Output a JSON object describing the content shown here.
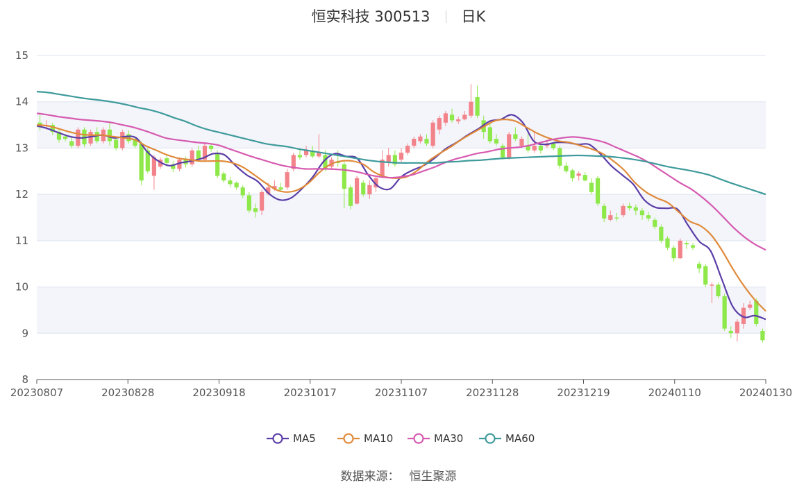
{
  "title": {
    "name": "恒实科技 300513",
    "period": "日K"
  },
  "source": {
    "label": "数据来源：",
    "value": "恒生聚源"
  },
  "colors": {
    "up": "#f3838b",
    "down": "#8ee84a",
    "MA5": "#5b3ea8",
    "MA10": "#e08a3a",
    "MA30": "#d65ab0",
    "MA60": "#3e9a9b",
    "band": "#f3f5fa",
    "grid": "#dde3ef"
  },
  "chart_data": {
    "type": "candlestick",
    "ylim": [
      8,
      15
    ],
    "yticks": [
      "8",
      "9",
      "10",
      "11",
      "12",
      "13",
      "14",
      "15"
    ],
    "xtick_labels": [
      "20230807",
      "20230828",
      "20230918",
      "20231017",
      "20231107",
      "20231128",
      "20231219",
      "20240110",
      "20240130"
    ],
    "grid": true,
    "legend_position": "bottom",
    "legend": [
      "MA5",
      "MA10",
      "MA30",
      "MA60"
    ],
    "ma_series": [
      {
        "name": "MA5",
        "values": [
          13.48,
          13.42,
          13.33,
          13.25,
          13.22,
          13.25,
          13.28,
          13.22,
          13.25,
          13.22,
          12.92,
          12.72,
          12.62,
          12.68,
          12.72,
          12.78,
          12.88,
          12.85,
          12.62,
          12.42,
          12.28,
          12.02,
          11.88,
          11.92,
          12.12,
          12.38,
          12.72,
          12.88,
          12.82,
          12.78,
          12.42,
          12.16,
          12.12,
          12.38,
          12.52,
          12.62,
          12.78,
          12.98,
          13.12,
          13.28,
          13.42,
          13.58,
          13.62,
          13.72,
          13.55,
          13.15,
          13.08,
          13.12,
          13.12,
          13.08,
          13.08,
          12.88,
          12.62,
          12.42,
          12.22,
          11.88,
          11.72,
          11.7,
          11.68,
          11.32,
          10.98,
          10.78,
          10.18,
          9.58,
          9.35,
          9.38,
          9.3
        ]
      },
      {
        "name": "MA10",
        "values": [
          13.5,
          13.48,
          13.42,
          13.35,
          13.3,
          13.28,
          13.28,
          13.25,
          13.22,
          13.18,
          13.05,
          12.95,
          12.85,
          12.78,
          12.75,
          12.72,
          12.72,
          12.72,
          12.68,
          12.58,
          12.42,
          12.25,
          12.1,
          12.05,
          12.1,
          12.25,
          12.48,
          12.65,
          12.72,
          12.72,
          12.65,
          12.48,
          12.38,
          12.35,
          12.38,
          12.52,
          12.72,
          12.88,
          13.02,
          13.18,
          13.32,
          13.45,
          13.58,
          13.62,
          13.58,
          13.45,
          13.32,
          13.22,
          13.15,
          13.12,
          13.05,
          12.98,
          12.88,
          12.72,
          12.52,
          12.25,
          12.05,
          11.92,
          11.82,
          11.62,
          11.42,
          11.32,
          11.12,
          10.78,
          10.38,
          10.02,
          9.72,
          9.48
        ]
      },
      {
        "name": "MA30",
        "values": [
          13.75,
          13.72,
          13.68,
          13.65,
          13.62,
          13.6,
          13.58,
          13.55,
          13.5,
          13.45,
          13.38,
          13.3,
          13.22,
          13.18,
          13.15,
          13.12,
          13.1,
          13.06,
          12.98,
          12.9,
          12.82,
          12.75,
          12.68,
          12.62,
          12.58,
          12.55,
          12.55,
          12.55,
          12.54,
          12.52,
          12.48,
          12.42,
          12.38,
          12.36,
          12.38,
          12.42,
          12.5,
          12.58,
          12.68,
          12.76,
          12.82,
          12.88,
          12.92,
          12.97,
          13.0,
          13.02,
          13.06,
          13.12,
          13.18,
          13.22,
          13.24,
          13.22,
          13.18,
          13.12,
          13.02,
          12.92,
          12.82,
          12.7,
          12.55,
          12.4,
          12.25,
          12.12,
          11.95,
          11.75,
          11.52,
          11.28,
          11.08,
          10.92,
          10.8
        ]
      },
      {
        "name": "MA60",
        "values": [
          14.22,
          14.2,
          14.16,
          14.12,
          14.08,
          14.05,
          14.02,
          13.98,
          13.93,
          13.87,
          13.82,
          13.75,
          13.66,
          13.58,
          13.48,
          13.4,
          13.34,
          13.28,
          13.22,
          13.16,
          13.1,
          13.06,
          13.03,
          12.98,
          12.94,
          12.9,
          12.86,
          12.82,
          12.78,
          12.74,
          12.71,
          12.69,
          12.68,
          12.68,
          12.68,
          12.68,
          12.7,
          12.71,
          12.73,
          12.74,
          12.76,
          12.78,
          12.79,
          12.8,
          12.81,
          12.82,
          12.83,
          12.84,
          12.84,
          12.83,
          12.82,
          12.8,
          12.77,
          12.73,
          12.68,
          12.62,
          12.57,
          12.53,
          12.48,
          12.42,
          12.33,
          12.24,
          12.16,
          12.08,
          12.0
        ]
      }
    ],
    "candles": [
      [
        13.55,
        13.45,
        13.72,
        13.38
      ],
      [
        13.48,
        13.5,
        13.6,
        13.4
      ],
      [
        13.5,
        13.35,
        13.55,
        13.28
      ],
      [
        13.35,
        13.18,
        13.4,
        13.12
      ],
      [
        13.25,
        13.2,
        13.3,
        13.15
      ],
      [
        13.15,
        13.05,
        13.25,
        13.0
      ],
      [
        13.05,
        13.4,
        13.45,
        13.0
      ],
      [
        13.4,
        13.08,
        13.45,
        13.02
      ],
      [
        13.1,
        13.35,
        13.4,
        13.05
      ],
      [
        13.35,
        13.15,
        13.45,
        13.1
      ],
      [
        13.15,
        13.4,
        13.45,
        13.1
      ],
      [
        13.4,
        13.15,
        13.55,
        13.05
      ],
      [
        13.18,
        13.0,
        13.25,
        12.95
      ],
      [
        13.0,
        13.35,
        13.4,
        12.95
      ],
      [
        13.3,
        13.15,
        13.38,
        13.1
      ],
      [
        13.2,
        13.05,
        13.25,
        13.0
      ],
      [
        13.1,
        12.3,
        13.15,
        12.2
      ],
      [
        12.95,
        12.5,
        13.0,
        12.45
      ],
      [
        12.4,
        12.8,
        12.85,
        12.1
      ],
      [
        12.6,
        12.75,
        12.8,
        12.55
      ],
      [
        12.78,
        12.68,
        12.85,
        12.6
      ],
      [
        12.65,
        12.55,
        12.72,
        12.48
      ],
      [
        12.55,
        12.75,
        12.8,
        12.5
      ],
      [
        12.75,
        12.65,
        12.82,
        12.58
      ],
      [
        12.65,
        12.95,
        13.0,
        12.6
      ],
      [
        12.95,
        12.75,
        13.05,
        12.7
      ],
      [
        12.75,
        13.05,
        13.1,
        12.7
      ],
      [
        13.05,
        12.98,
        13.1,
        12.92
      ],
      [
        12.9,
        12.4,
        12.95,
        12.35
      ],
      [
        12.45,
        12.3,
        12.5,
        12.25
      ],
      [
        12.3,
        12.22,
        12.38,
        12.15
      ],
      [
        12.25,
        12.15,
        12.28,
        12.1
      ],
      [
        12.15,
        11.98,
        12.2,
        11.92
      ],
      [
        11.98,
        11.65,
        12.05,
        11.6
      ],
      [
        11.7,
        11.62,
        11.8,
        11.5
      ],
      [
        11.65,
        12.05,
        12.1,
        11.55
      ],
      [
        12.02,
        12.15,
        12.25,
        11.98
      ],
      [
        12.12,
        12.18,
        12.3,
        12.08
      ],
      [
        12.15,
        12.1,
        12.25,
        12.05
      ],
      [
        12.15,
        12.48,
        12.55,
        12.1
      ],
      [
        12.55,
        12.85,
        12.9,
        12.5
      ],
      [
        12.85,
        12.8,
        13.0,
        12.75
      ],
      [
        12.85,
        12.95,
        13.05,
        12.8
      ],
      [
        12.95,
        12.82,
        13.05,
        12.78
      ],
      [
        12.82,
        12.9,
        13.3,
        12.78
      ],
      [
        12.85,
        12.55,
        12.95,
        12.5
      ],
      [
        12.6,
        12.75,
        12.8,
        12.55
      ],
      [
        12.7,
        12.68,
        12.95,
        12.6
      ],
      [
        12.65,
        12.12,
        12.7,
        11.7
      ],
      [
        12.15,
        11.75,
        12.2,
        11.68
      ],
      [
        11.8,
        12.35,
        12.4,
        11.78
      ],
      [
        12.25,
        12.0,
        12.3,
        11.95
      ],
      [
        12.0,
        12.2,
        12.3,
        11.9
      ],
      [
        12.15,
        12.35,
        12.38,
        12.05
      ],
      [
        12.4,
        12.75,
        12.95,
        12.35
      ],
      [
        12.7,
        12.85,
        13.0,
        12.6
      ],
      [
        12.85,
        12.65,
        12.95,
        12.6
      ],
      [
        12.75,
        12.9,
        13.0,
        12.7
      ],
      [
        12.9,
        13.05,
        13.1,
        12.85
      ],
      [
        13.05,
        13.2,
        13.25,
        13.0
      ],
      [
        13.15,
        13.25,
        13.3,
        13.1
      ],
      [
        13.2,
        13.1,
        13.3,
        13.05
      ],
      [
        13.05,
        13.55,
        13.6,
        13.0
      ],
      [
        13.4,
        13.65,
        13.7,
        13.3
      ],
      [
        13.55,
        13.75,
        13.8,
        13.48
      ],
      [
        13.72,
        13.6,
        13.85,
        13.55
      ],
      [
        13.58,
        13.62,
        13.68,
        13.52
      ],
      [
        13.62,
        13.72,
        13.8,
        13.6
      ],
      [
        13.7,
        14.0,
        14.38,
        13.65
      ],
      [
        14.1,
        13.7,
        14.35,
        13.65
      ],
      [
        13.6,
        13.35,
        13.7,
        13.2
      ],
      [
        13.45,
        13.15,
        13.6,
        13.1
      ],
      [
        13.2,
        13.1,
        13.3,
        13.05
      ],
      [
        13.05,
        12.8,
        13.1,
        12.75
      ],
      [
        12.8,
        13.3,
        13.35,
        12.75
      ],
      [
        13.3,
        13.2,
        13.45,
        13.15
      ],
      [
        13.05,
        13.2,
        13.25,
        13.0
      ],
      [
        13.05,
        12.95,
        13.3,
        12.9
      ],
      [
        12.95,
        13.05,
        13.35,
        12.9
      ],
      [
        13.05,
        12.95,
        13.1,
        12.88
      ],
      [
        13.05,
        13.1,
        13.15,
        13.0
      ],
      [
        13.1,
        13.0,
        13.12,
        12.95
      ],
      [
        13.0,
        12.62,
        13.05,
        12.55
      ],
      [
        12.62,
        12.5,
        12.7,
        12.45
      ],
      [
        12.52,
        12.35,
        12.55,
        12.28
      ],
      [
        12.4,
        12.45,
        12.5,
        12.3
      ],
      [
        12.42,
        12.3,
        12.48,
        12.28
      ],
      [
        12.25,
        12.05,
        12.35,
        12.0
      ],
      [
        12.35,
        11.8,
        12.4,
        11.75
      ],
      [
        11.75,
        11.48,
        11.8,
        11.4
      ],
      [
        11.45,
        11.55,
        11.65,
        11.42
      ],
      [
        11.5,
        11.48,
        11.6,
        11.42
      ],
      [
        11.55,
        11.75,
        11.8,
        11.5
      ],
      [
        11.75,
        11.7,
        11.82,
        11.65
      ],
      [
        11.72,
        11.65,
        11.78,
        11.55
      ],
      [
        11.65,
        11.55,
        11.7,
        11.45
      ],
      [
        11.55,
        11.48,
        11.62,
        11.42
      ],
      [
        11.45,
        11.3,
        11.5,
        11.25
      ],
      [
        11.3,
        11.0,
        11.35,
        10.95
      ],
      [
        11.05,
        10.85,
        11.1,
        10.8
      ],
      [
        10.85,
        10.62,
        10.9,
        10.55
      ],
      [
        10.62,
        11.0,
        11.05,
        10.6
      ],
      [
        10.95,
        10.92,
        11.0,
        10.82
      ],
      [
        10.9,
        10.85,
        10.95,
        10.8
      ],
      [
        10.5,
        10.4,
        10.55,
        10.3
      ],
      [
        10.45,
        10.05,
        10.5,
        10.0
      ],
      [
        10.05,
        10.05,
        10.1,
        9.65
      ],
      [
        10.05,
        9.8,
        10.1,
        9.75
      ],
      [
        9.8,
        9.1,
        9.85,
        9.05
      ],
      [
        9.05,
        9.0,
        9.15,
        8.9
      ],
      [
        9.0,
        9.25,
        9.3,
        8.82
      ],
      [
        9.2,
        9.55,
        9.65,
        9.1
      ],
      [
        9.55,
        9.62,
        9.7,
        9.5
      ],
      [
        9.7,
        9.2,
        9.75,
        9.15
      ],
      [
        9.05,
        8.85,
        9.1,
        8.8
      ]
    ]
  }
}
